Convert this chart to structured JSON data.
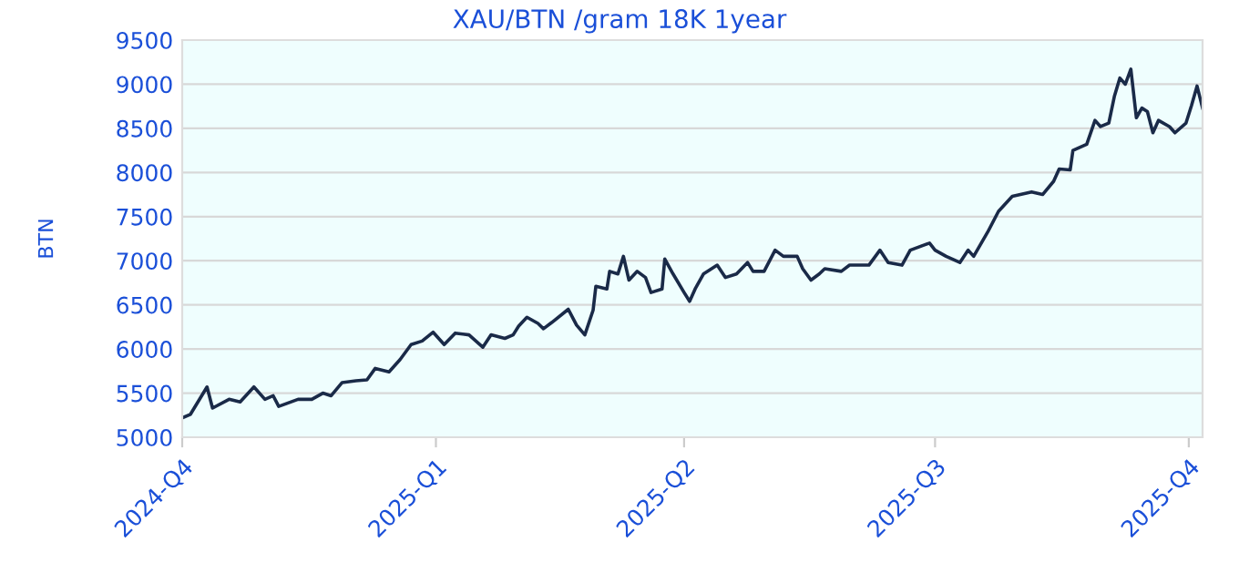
{
  "chart_data": {
    "type": "line",
    "title": "XAU/BTN /gram 18K 1year",
    "ylabel": "BTN",
    "x": [
      "2024-10-01",
      "2024-10-04",
      "2024-10-10",
      "2024-10-12",
      "2024-10-18",
      "2024-10-22",
      "2024-10-27",
      "2024-10-31",
      "2024-11-03",
      "2024-11-05",
      "2024-11-12",
      "2024-11-17",
      "2024-11-21",
      "2024-11-24",
      "2024-11-28",
      "2024-12-03",
      "2024-12-07",
      "2024-12-10",
      "2024-12-15",
      "2024-12-19",
      "2024-12-23",
      "2024-12-27",
      "2024-12-31",
      "2025-01-04",
      "2025-01-08",
      "2025-01-13",
      "2025-01-18",
      "2025-01-21",
      "2025-01-26",
      "2025-01-29",
      "2025-01-31",
      "2025-02-03",
      "2025-02-07",
      "2025-02-09",
      "2025-02-12",
      "2025-02-18",
      "2025-02-20",
      "2025-02-21",
      "2025-02-24",
      "2025-02-27",
      "2025-02-28",
      "2025-03-04",
      "2025-03-05",
      "2025-03-08",
      "2025-03-10",
      "2025-03-12",
      "2025-03-15",
      "2025-03-18",
      "2025-03-20",
      "2025-03-24",
      "2025-03-25",
      "2025-03-28",
      "2025-04-01",
      "2025-04-03",
      "2025-04-05",
      "2025-04-08",
      "2025-04-13",
      "2025-04-16",
      "2025-04-20",
      "2025-04-24",
      "2025-04-26",
      "2025-04-30",
      "2025-05-04",
      "2025-05-07",
      "2025-05-12",
      "2025-05-14",
      "2025-05-17",
      "2025-05-20",
      "2025-05-22",
      "2025-05-28",
      "2025-05-31",
      "2025-06-02",
      "2025-06-07",
      "2025-06-11",
      "2025-06-14",
      "2025-06-19",
      "2025-06-22",
      "2025-06-29",
      "2025-07-01",
      "2025-07-05",
      "2025-07-10",
      "2025-07-13",
      "2025-07-15",
      "2025-07-20",
      "2025-07-24",
      "2025-07-29",
      "2025-08-05",
      "2025-08-09",
      "2025-08-13",
      "2025-08-15",
      "2025-08-19",
      "2025-08-20",
      "2025-08-25",
      "2025-08-28",
      "2025-08-30",
      "2025-09-02",
      "2025-09-04",
      "2025-09-06",
      "2025-09-08",
      "2025-09-10",
      "2025-09-12",
      "2025-09-14",
      "2025-09-16",
      "2025-09-18",
      "2025-09-20",
      "2025-09-24",
      "2025-09-26",
      "2025-09-30",
      "2025-10-02",
      "2025-10-04",
      "2025-10-06"
    ],
    "series": [
      {
        "color": "#1a2a48",
        "values": [
          5220,
          5260,
          5570,
          5330,
          5430,
          5400,
          5570,
          5430,
          5470,
          5350,
          5430,
          5430,
          5500,
          5470,
          5620,
          5640,
          5650,
          5780,
          5740,
          5880,
          6050,
          6090,
          6190,
          6050,
          6180,
          6160,
          6020,
          6160,
          6120,
          6160,
          6260,
          6360,
          6290,
          6230,
          6300,
          6450,
          6330,
          6270,
          6160,
          6440,
          6710,
          6680,
          6880,
          6850,
          7050,
          6780,
          6880,
          6810,
          6640,
          6680,
          7020,
          6850,
          6640,
          6540,
          6680,
          6850,
          6950,
          6810,
          6850,
          6980,
          6880,
          6880,
          7120,
          7050,
          7050,
          6910,
          6780,
          6850,
          6910,
          6880,
          6950,
          6950,
          6950,
          7120,
          6980,
          6950,
          7120,
          7200,
          7120,
          7050,
          6980,
          7120,
          7050,
          7320,
          7560,
          7730,
          7780,
          7750,
          7900,
          8040,
          8030,
          8250,
          8320,
          8590,
          8520,
          8560,
          8860,
          9070,
          9000,
          9170,
          8620,
          8730,
          8690,
          8450,
          8590,
          8520,
          8450,
          8560,
          8760,
          8980,
          8730
        ]
      }
    ],
    "xlim": [
      "2024-10-01",
      "2025-10-06"
    ],
    "xticks": [
      {
        "value": "2024-10-01",
        "label": "2024-Q4"
      },
      {
        "value": "2025-01-01",
        "label": "2025-Q1"
      },
      {
        "value": "2025-04-01",
        "label": "2025-Q2"
      },
      {
        "value": "2025-07-01",
        "label": "2025-Q3"
      },
      {
        "value": "2025-10-01",
        "label": "2025-Q4"
      }
    ],
    "ylim": [
      5000,
      9500
    ],
    "yticks": [
      5000,
      5500,
      6000,
      6500,
      7000,
      7500,
      8000,
      8500,
      9000,
      9500
    ],
    "grid": "y",
    "legend": false,
    "marker": "none",
    "line_style": "solid"
  }
}
